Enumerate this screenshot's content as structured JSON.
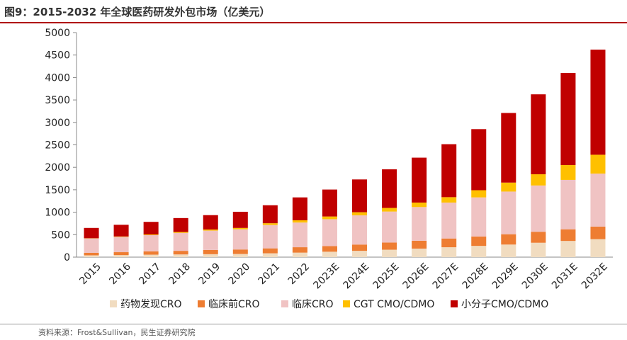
{
  "title": "图9：2015-2032 年全球医药研发外包市场（亿美元）",
  "source": "资料来源：Frost&Sullivan，民生证券研究院",
  "chart_data": {
    "type": "bar",
    "stacked": true,
    "categories": [
      "2015",
      "2016",
      "2017",
      "2018",
      "2019",
      "2020",
      "2021",
      "2022",
      "2023E",
      "2024E",
      "2025E",
      "2026E",
      "2027E",
      "2028E",
      "2029E",
      "2030E",
      "2031E",
      "2032E"
    ],
    "ylim": [
      0,
      5000
    ],
    "yticks": [
      "0",
      "500",
      "1000",
      "1500",
      "2000",
      "2500",
      "3000",
      "3500",
      "4000",
      "4500",
      "5000"
    ],
    "legend_position": "bottom",
    "grid": false,
    "series": [
      {
        "name": "药物发现CRO",
        "color": "#f1dcc0",
        "values": [
          40,
          45,
          55,
          60,
          65,
          70,
          85,
          100,
          120,
          140,
          165,
          190,
          220,
          250,
          280,
          320,
          360,
          400
        ]
      },
      {
        "name": "临床前CRO",
        "color": "#ee7d32",
        "values": [
          55,
          65,
          75,
          80,
          95,
          100,
          110,
          120,
          125,
          140,
          160,
          175,
          195,
          210,
          230,
          245,
          260,
          280
        ]
      },
      {
        "name": "临床CRO",
        "color": "#f0c3c3",
        "values": [
          320,
          340,
          360,
          400,
          430,
          450,
          520,
          550,
          600,
          650,
          690,
          750,
          800,
          870,
          950,
          1030,
          1100,
          1180
        ]
      },
      {
        "name": "CGT CMO/CDMO",
        "color": "#ffc000",
        "values": [
          5,
          10,
          15,
          20,
          25,
          30,
          40,
          50,
          60,
          70,
          80,
          100,
          120,
          160,
          200,
          250,
          330,
          420
        ]
      },
      {
        "name": "小分子CMO/CDMO",
        "color": "#c00000",
        "values": [
          230,
          260,
          280,
          310,
          320,
          360,
          400,
          510,
          600,
          730,
          860,
          1000,
          1180,
          1360,
          1550,
          1780,
          2050,
          2340
        ]
      }
    ]
  }
}
